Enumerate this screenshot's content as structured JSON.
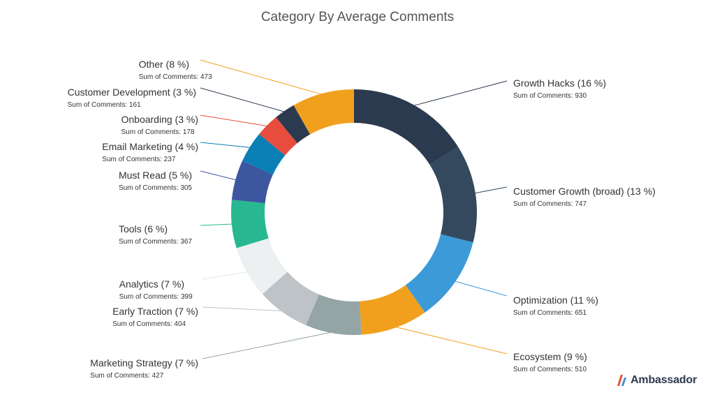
{
  "brand": {
    "name": "Ambassador",
    "logo_colors": [
      "#e74c3c",
      "#3a8fd0"
    ]
  },
  "chart_data": {
    "type": "pie",
    "style": "donut",
    "title": "Category By Average Comments",
    "subtitle_prefix": "Sum of Comments: ",
    "slices": [
      {
        "label": "Growth Hacks (16 %)",
        "value": 930,
        "sub": "Sum of Comments: 930",
        "color": "#2b3a4e",
        "side": "right"
      },
      {
        "label": "Customer Growth (broad) (13 %)",
        "value": 747,
        "sub": "Sum of Comments: 747",
        "color": "#34495e",
        "side": "right"
      },
      {
        "label": "Optimization (11 %)",
        "value": 651,
        "sub": "Sum of Comments: 651",
        "color": "#3d9ad8",
        "side": "right"
      },
      {
        "label": "Ecosystem (9 %)",
        "value": 510,
        "sub": "Sum of Comments: 510",
        "color": "#f1a01e",
        "side": "right"
      },
      {
        "label": "Marketing Strategy (7 %)",
        "value": 427,
        "sub": "Sum of Comments: 427",
        "color": "#95a5a6",
        "side": "left"
      },
      {
        "label": "Early Traction (7 %)",
        "value": 404,
        "sub": "Sum of Comments: 404",
        "color": "#bdc3c7",
        "side": "left"
      },
      {
        "label": "Analytics (7 %)",
        "value": 399,
        "sub": "Sum of Comments: 399",
        "color": "#ecf0f1",
        "side": "left"
      },
      {
        "label": "Tools (6 %)",
        "value": 367,
        "sub": "Sum of Comments: 367",
        "color": "#27b892",
        "side": "left"
      },
      {
        "label": "Must Read (5 %)",
        "value": 305,
        "sub": "Sum of Comments: 305",
        "color": "#3d56a0",
        "side": "left"
      },
      {
        "label": "Email Marketing (4 %)",
        "value": 237,
        "sub": "Sum of Comments: 237",
        "color": "#0a7fb5",
        "side": "left"
      },
      {
        "label": "Onboarding (3 %)",
        "value": 178,
        "sub": "Sum of Comments: 178",
        "color": "#e74c3c",
        "side": "left"
      },
      {
        "label": "Customer Development (3 %)",
        "value": 161,
        "sub": "Sum of Comments: 161",
        "color": "#2b3a4e",
        "side": "left"
      },
      {
        "label": "Other (8 %)",
        "value": 473,
        "sub": "Sum of Comments: 473",
        "color": "#f1a01e",
        "side": "left"
      }
    ],
    "legend": "none"
  }
}
